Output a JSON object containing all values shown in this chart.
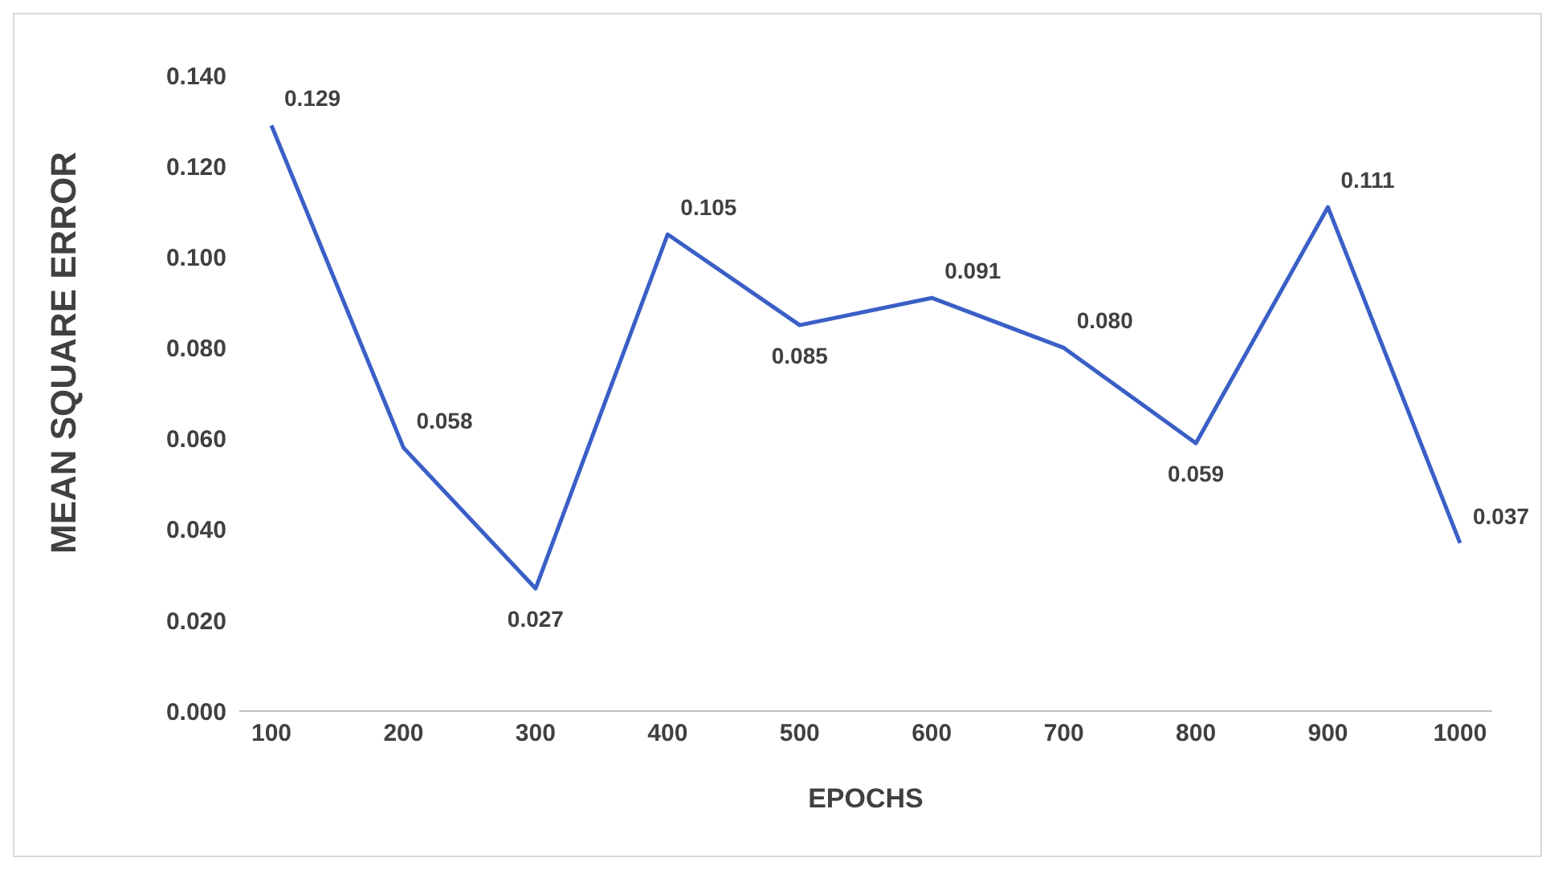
{
  "chart_data": {
    "type": "line",
    "xlabel": "EPOCHS",
    "ylabel": "MEAN SQUARE ERROR",
    "categories": [
      "100",
      "200",
      "300",
      "400",
      "500",
      "600",
      "700",
      "800",
      "900",
      "1000"
    ],
    "series": [
      {
        "color": "#3a5fc6",
        "values": [
          0.129,
          0.058,
          0.027,
          0.105,
          0.085,
          0.091,
          0.08,
          0.059,
          0.111,
          0.037
        ],
        "value_labels": [
          "0.129",
          "0.058",
          "0.027",
          "0.105",
          "0.085",
          "0.091",
          "0.080",
          "0.059",
          "0.111",
          "0.037"
        ]
      }
    ],
    "ylim": [
      0,
      0.14
    ],
    "yticks": [
      {
        "value": 0,
        "label": "0.000"
      },
      {
        "value": 0.02,
        "label": "0.020"
      },
      {
        "value": 0.04,
        "label": "0.040"
      },
      {
        "value": 0.06,
        "label": "0.060"
      },
      {
        "value": 0.08,
        "label": "0.080"
      },
      {
        "value": 0.1,
        "label": "0.100"
      },
      {
        "value": 0.12,
        "label": "0.120"
      },
      {
        "value": 0.14,
        "label": "0.140"
      }
    ],
    "grid": false,
    "legend": false,
    "marker": "none",
    "line_style": "solid"
  }
}
